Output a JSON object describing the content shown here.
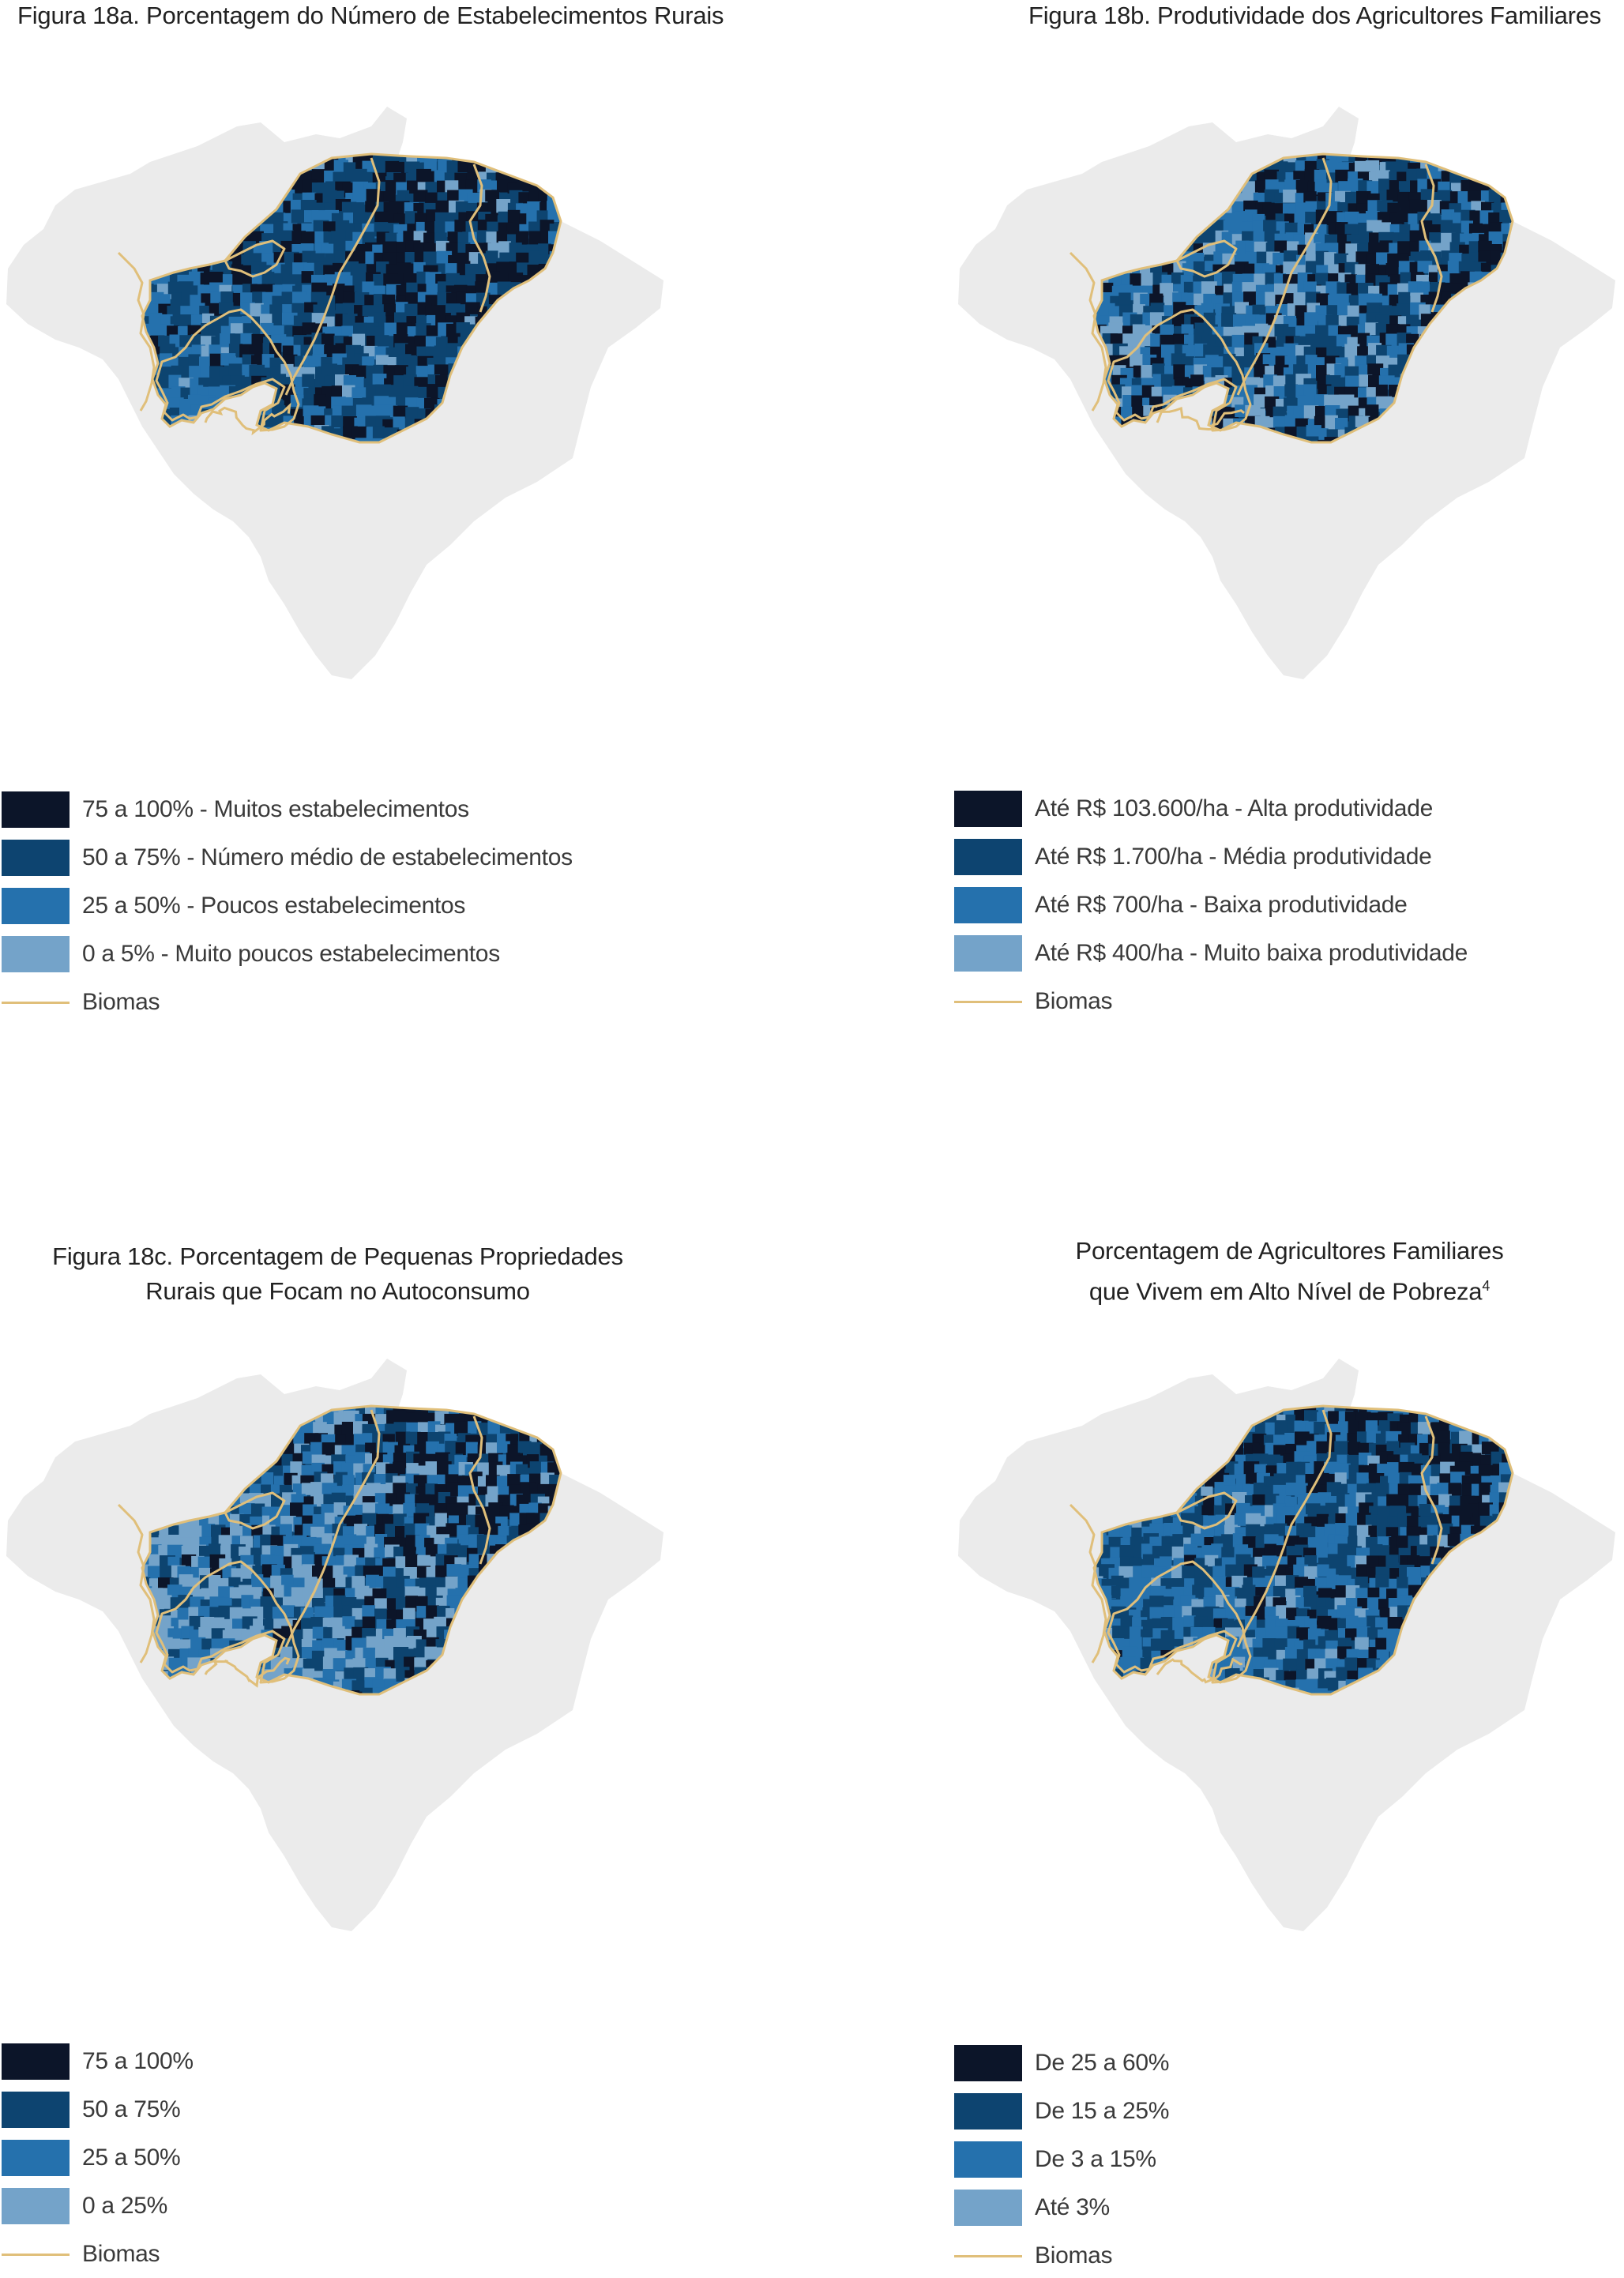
{
  "colors": {
    "level1": "#0c1529",
    "level2": "#0d4470",
    "level3": "#2571ad",
    "level4": "#74a3c9",
    "biomas": "#e0bf7a",
    "land": "#ebebeb"
  },
  "panels": [
    {
      "title_lines": [
        "Figura 18a. Porcentagem do Número de Estabelecimentos Rurais"
      ],
      "legend": [
        {
          "label": "75 a 100% - Muitos estabelecimentos",
          "color": "#0c1529"
        },
        {
          "label": "50 a 75% - Número médio de estabelecimentos",
          "color": "#0d4470"
        },
        {
          "label": "25 a 50% - Poucos estabelecimentos",
          "color": "#2571ad"
        },
        {
          "label": "0 a 5% - Muito poucos estabelecimentos",
          "color": "#74a3c9"
        }
      ],
      "biomas_label": "Biomas"
    },
    {
      "title_lines": [
        "Figura 18b. Produtividade dos Agricultores Familiares"
      ],
      "legend": [
        {
          "label": "Até R$ 103.600/ha - Alta produtividade",
          "color": "#0c1529"
        },
        {
          "label": "Até R$ 1.700/ha - Média produtividade",
          "color": "#0d4470"
        },
        {
          "label": "Até R$ 700/ha - Baixa produtividade",
          "color": "#2571ad"
        },
        {
          "label": "Até R$ 400/ha - Muito baixa produtividade",
          "color": "#74a3c9"
        }
      ],
      "biomas_label": "Biomas"
    },
    {
      "title_lines": [
        "Figura 18c. Porcentagem de Pequenas Propriedades",
        "Rurais que Focam no Autoconsumo"
      ],
      "legend": [
        {
          "label": "75 a 100%",
          "color": "#0c1529"
        },
        {
          "label": "50 a 75%",
          "color": "#0d4470"
        },
        {
          "label": "25 a 50%",
          "color": "#2571ad"
        },
        {
          "label": "0 a 25%",
          "color": "#74a3c9"
        }
      ],
      "biomas_label": "Biomas"
    },
    {
      "title_lines": [
        "Porcentagem de Agricultores Familiares",
        "que Vivem em Alto Nível de Pobreza"
      ],
      "title_footnote": "4",
      "legend": [
        {
          "label": "De 25 a 60%",
          "color": "#0c1529"
        },
        {
          "label": "De 15 a 25%",
          "color": "#0d4470"
        },
        {
          "label": "De 3 a 15%",
          "color": "#2571ad"
        },
        {
          "label": "Até 3%",
          "color": "#74a3c9"
        }
      ],
      "biomas_label": "Biomas"
    }
  ]
}
